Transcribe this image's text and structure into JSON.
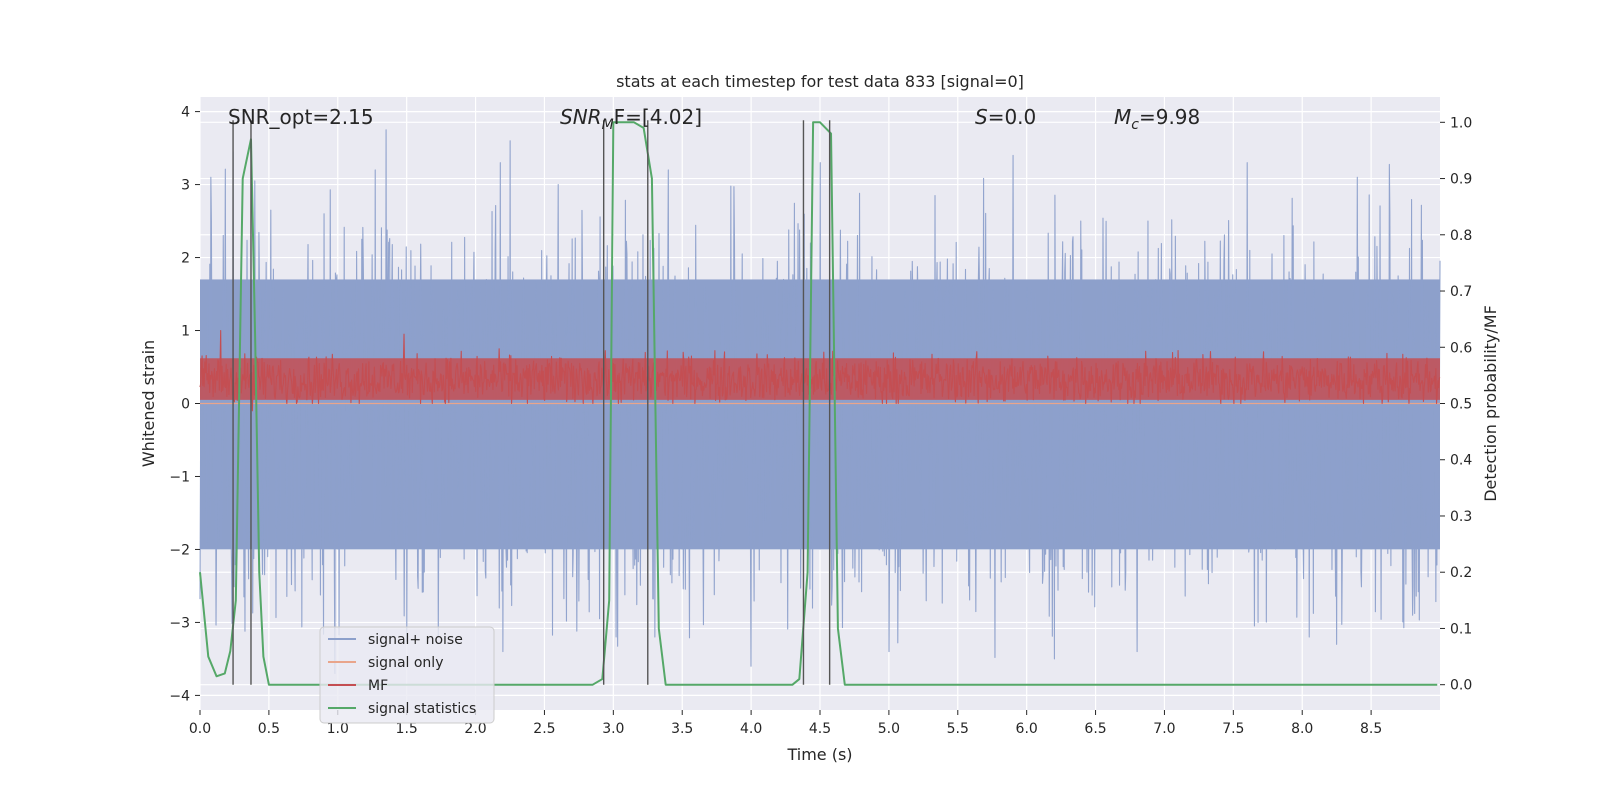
{
  "chart_data": {
    "type": "line",
    "title": "stats at each timestep for test data 833 [signal=0]",
    "xlabel": "Time (s)",
    "ylabel": "Whitened strain",
    "y2label": "Detection probability/MF",
    "xlim": [
      0.0,
      9.0
    ],
    "ylim": [
      -4.2,
      4.2
    ],
    "y2lim": [
      -0.045,
      1.045
    ],
    "x_ticks": [
      0.0,
      0.5,
      1.0,
      1.5,
      2.0,
      2.5,
      3.0,
      3.5,
      4.0,
      4.5,
      5.0,
      5.5,
      6.0,
      6.5,
      7.0,
      7.5,
      8.0,
      8.5
    ],
    "x_tick_labels": [
      "0.0",
      "0.5",
      "1.0",
      "1.5",
      "2.0",
      "2.5",
      "3.0",
      "3.5",
      "4.0",
      "4.5",
      "5.0",
      "5.5",
      "6.0",
      "6.5",
      "7.0",
      "7.5",
      "8.0",
      "8.5"
    ],
    "y_ticks": [
      -4,
      -3,
      -2,
      -1,
      0,
      1,
      2,
      3,
      4
    ],
    "y_tick_labels": [
      "−4",
      "−3",
      "−2",
      "−1",
      "0",
      "1",
      "2",
      "3",
      "4"
    ],
    "y2_ticks": [
      0.0,
      0.1,
      0.2,
      0.3,
      0.4,
      0.5,
      0.6,
      0.7,
      0.8,
      0.9,
      1.0
    ],
    "y2_tick_labels": [
      "0.0",
      "0.1",
      "0.2",
      "0.3",
      "0.4",
      "0.5",
      "0.6",
      "0.7",
      "0.8",
      "0.9",
      "1.0"
    ],
    "grid": true,
    "legend_position": "lower-left",
    "annotations": {
      "snr_opt": "SNR_opt=2.15",
      "snr_mf_main": "SNR",
      "snr_mf_sub": "M",
      "snr_mf_rest": "F=[4.02]",
      "s_main": "S",
      "s_rest": "=0.0",
      "mc_main": "M",
      "mc_sub": "c",
      "mc_rest": "=9.98"
    },
    "series": [
      {
        "name": "signal+ noise",
        "color": "#8da0cb",
        "kind": "noise-band",
        "band_ymin": -2.0,
        "band_ymax": 1.7,
        "spike_max": 3.6,
        "spike_min": -3.8,
        "peaks": [
          [
            0.24,
            3.45
          ],
          [
            0.08,
            3.1
          ],
          [
            1.35,
            3.75
          ],
          [
            0.9,
            2.6
          ],
          [
            1.27,
            3.2
          ],
          [
            2.18,
            3.3
          ],
          [
            2.25,
            3.6
          ],
          [
            2.6,
            3.0
          ],
          [
            3.4,
            3.2
          ],
          [
            4.0,
            3.0
          ],
          [
            4.5,
            3.3
          ],
          [
            5.9,
            3.4
          ],
          [
            7.6,
            3.3
          ],
          [
            8.4,
            3.1
          ],
          [
            0.98,
            -3.7
          ],
          [
            1.73,
            -3.2
          ],
          [
            2.2,
            -3.4
          ],
          [
            3.3,
            -3.2
          ],
          [
            4.0,
            -3.6
          ],
          [
            5.0,
            -3.4
          ],
          [
            6.2,
            -3.5
          ],
          [
            6.8,
            -3.4
          ],
          [
            7.68,
            -3.0
          ],
          [
            8.05,
            -3.2
          ],
          [
            8.25,
            -3.3
          ]
        ]
      },
      {
        "name": "signal only",
        "color": "#e9a58b",
        "kind": "flat",
        "value": 0.0
      },
      {
        "name": "MF",
        "color": "#c44e52",
        "kind": "noise-band",
        "band_ymin": 0.0,
        "band_ymax": 0.7,
        "peaks": [
          [
            0.15,
            1.0
          ],
          [
            1.48,
            0.95
          ],
          [
            0.38,
            -0.1
          ]
        ]
      },
      {
        "name": "signal statistics",
        "color": "#55a868",
        "kind": "line",
        "axis": "right",
        "x": [
          0.0,
          0.02,
          0.06,
          0.12,
          0.18,
          0.22,
          0.26,
          0.31,
          0.37,
          0.4,
          0.43,
          0.46,
          0.5,
          0.55,
          2.85,
          2.92,
          2.97,
          3.0,
          3.05,
          3.15,
          3.22,
          3.28,
          3.33,
          3.38,
          3.42,
          4.3,
          4.35,
          4.41,
          4.45,
          4.5,
          4.58,
          4.63,
          4.68,
          8.98
        ],
        "y": [
          0.2,
          0.15,
          0.05,
          0.015,
          0.02,
          0.06,
          0.15,
          0.9,
          0.97,
          0.62,
          0.2,
          0.05,
          0.0,
          0.0,
          0.0,
          0.01,
          0.15,
          1.0,
          1.0,
          1.0,
          0.99,
          0.9,
          0.1,
          0.0,
          0.0,
          0.0,
          0.01,
          0.2,
          1.0,
          1.0,
          0.98,
          0.1,
          0.0,
          0.0
        ]
      }
    ],
    "vertical_lines": [
      0.24,
      0.37,
      2.93,
      3.25,
      4.38,
      4.57
    ]
  }
}
